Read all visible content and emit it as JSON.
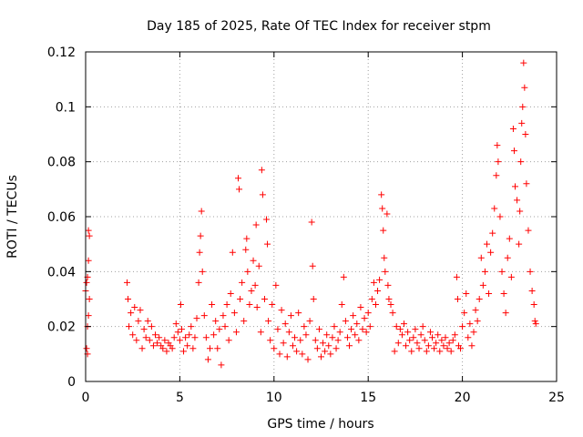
{
  "chart_data": {
    "type": "scatter",
    "title": "Day 185 of 2025, Rate Of TEC Index for receiver stpm",
    "xlabel": "GPS time / hours",
    "ylabel": "ROTI / TECUs",
    "xlim": [
      0,
      25
    ],
    "ylim": [
      0,
      0.12
    ],
    "xticks": [
      0,
      5,
      10,
      15,
      20,
      25
    ],
    "xtick_labels": [
      "0",
      "5",
      "10",
      "15",
      "20",
      "25"
    ],
    "yticks": [
      0,
      0.02,
      0.04,
      0.06,
      0.08,
      0.1,
      0.12
    ],
    "ytick_labels": [
      "0",
      "0.02",
      "0.04",
      "0.06",
      "0.08",
      "0.1",
      "0.12"
    ],
    "grid": true,
    "marker": "+",
    "series": [
      {
        "name": "ROTI",
        "color": "#ff0000",
        "points": [
          [
            0.0,
            0.033
          ],
          [
            0.05,
            0.036
          ],
          [
            0.05,
            0.012
          ],
          [
            0.1,
            0.038
          ],
          [
            0.1,
            0.02
          ],
          [
            0.1,
            0.01
          ],
          [
            0.15,
            0.055
          ],
          [
            0.15,
            0.044
          ],
          [
            0.2,
            0.053
          ],
          [
            0.2,
            0.03
          ],
          [
            0.15,
            0.024
          ],
          [
            2.2,
            0.036
          ],
          [
            2.25,
            0.03
          ],
          [
            2.3,
            0.02
          ],
          [
            2.4,
            0.025
          ],
          [
            2.5,
            0.017
          ],
          [
            2.6,
            0.027
          ],
          [
            2.7,
            0.015
          ],
          [
            2.8,
            0.022
          ],
          [
            2.9,
            0.026
          ],
          [
            3.0,
            0.012
          ],
          [
            3.1,
            0.019
          ],
          [
            3.2,
            0.016
          ],
          [
            3.3,
            0.022
          ],
          [
            3.4,
            0.015
          ],
          [
            3.5,
            0.02
          ],
          [
            3.6,
            0.013
          ],
          [
            3.7,
            0.017
          ],
          [
            3.8,
            0.014
          ],
          [
            3.9,
            0.016
          ],
          [
            4.0,
            0.013
          ],
          [
            4.1,
            0.012
          ],
          [
            4.2,
            0.015
          ],
          [
            4.3,
            0.011
          ],
          [
            4.4,
            0.014
          ],
          [
            4.5,
            0.013
          ],
          [
            4.6,
            0.012
          ],
          [
            4.7,
            0.016
          ],
          [
            4.8,
            0.021
          ],
          [
            4.9,
            0.018
          ],
          [
            5.0,
            0.015
          ],
          [
            5.05,
            0.028
          ],
          [
            5.1,
            0.019
          ],
          [
            5.2,
            0.011
          ],
          [
            5.3,
            0.016
          ],
          [
            5.4,
            0.013
          ],
          [
            5.5,
            0.017
          ],
          [
            5.6,
            0.02
          ],
          [
            5.7,
            0.012
          ],
          [
            5.8,
            0.016
          ],
          [
            5.9,
            0.023
          ],
          [
            6.0,
            0.036
          ],
          [
            6.05,
            0.047
          ],
          [
            6.1,
            0.053
          ],
          [
            6.15,
            0.062
          ],
          [
            6.2,
            0.04
          ],
          [
            6.3,
            0.024
          ],
          [
            6.4,
            0.016
          ],
          [
            6.5,
            0.008
          ],
          [
            6.6,
            0.012
          ],
          [
            6.7,
            0.028
          ],
          [
            6.8,
            0.017
          ],
          [
            6.9,
            0.022
          ],
          [
            7.0,
            0.012
          ],
          [
            7.1,
            0.019
          ],
          [
            7.2,
            0.006
          ],
          [
            7.3,
            0.024
          ],
          [
            7.4,
            0.02
          ],
          [
            7.5,
            0.028
          ],
          [
            7.6,
            0.015
          ],
          [
            7.7,
            0.032
          ],
          [
            7.8,
            0.047
          ],
          [
            7.9,
            0.025
          ],
          [
            8.0,
            0.018
          ],
          [
            8.1,
            0.074
          ],
          [
            8.15,
            0.07
          ],
          [
            8.2,
            0.03
          ],
          [
            8.3,
            0.036
          ],
          [
            8.4,
            0.022
          ],
          [
            8.5,
            0.048
          ],
          [
            8.55,
            0.052
          ],
          [
            8.6,
            0.04
          ],
          [
            8.7,
            0.028
          ],
          [
            8.8,
            0.033
          ],
          [
            8.9,
            0.044
          ],
          [
            9.0,
            0.035
          ],
          [
            9.05,
            0.057
          ],
          [
            9.1,
            0.027
          ],
          [
            9.2,
            0.042
          ],
          [
            9.3,
            0.018
          ],
          [
            9.35,
            0.077
          ],
          [
            9.4,
            0.068
          ],
          [
            9.5,
            0.03
          ],
          [
            9.6,
            0.059
          ],
          [
            9.65,
            0.05
          ],
          [
            9.7,
            0.022
          ],
          [
            9.8,
            0.015
          ],
          [
            9.9,
            0.028
          ],
          [
            10.0,
            0.012
          ],
          [
            10.1,
            0.035
          ],
          [
            10.2,
            0.019
          ],
          [
            10.3,
            0.01
          ],
          [
            10.4,
            0.026
          ],
          [
            10.5,
            0.014
          ],
          [
            10.6,
            0.021
          ],
          [
            10.7,
            0.009
          ],
          [
            10.8,
            0.018
          ],
          [
            10.9,
            0.024
          ],
          [
            11.0,
            0.013
          ],
          [
            11.1,
            0.016
          ],
          [
            11.2,
            0.011
          ],
          [
            11.3,
            0.025
          ],
          [
            11.4,
            0.015
          ],
          [
            11.5,
            0.01
          ],
          [
            11.6,
            0.02
          ],
          [
            11.7,
            0.017
          ],
          [
            11.8,
            0.008
          ],
          [
            11.9,
            0.022
          ],
          [
            12.0,
            0.058
          ],
          [
            12.05,
            0.042
          ],
          [
            12.1,
            0.03
          ],
          [
            12.2,
            0.015
          ],
          [
            12.3,
            0.012
          ],
          [
            12.4,
            0.019
          ],
          [
            12.5,
            0.009
          ],
          [
            12.6,
            0.014
          ],
          [
            12.7,
            0.011
          ],
          [
            12.8,
            0.017
          ],
          [
            12.9,
            0.013
          ],
          [
            13.0,
            0.01
          ],
          [
            13.1,
            0.016
          ],
          [
            13.2,
            0.02
          ],
          [
            13.3,
            0.012
          ],
          [
            13.4,
            0.015
          ],
          [
            13.5,
            0.018
          ],
          [
            13.6,
            0.028
          ],
          [
            13.7,
            0.038
          ],
          [
            13.8,
            0.022
          ],
          [
            13.9,
            0.016
          ],
          [
            14.0,
            0.013
          ],
          [
            14.1,
            0.019
          ],
          [
            14.2,
            0.024
          ],
          [
            14.3,
            0.017
          ],
          [
            14.4,
            0.021
          ],
          [
            14.5,
            0.015
          ],
          [
            14.6,
            0.027
          ],
          [
            14.7,
            0.019
          ],
          [
            14.8,
            0.023
          ],
          [
            14.9,
            0.018
          ],
          [
            15.0,
            0.025
          ],
          [
            15.1,
            0.02
          ],
          [
            15.2,
            0.03
          ],
          [
            15.3,
            0.036
          ],
          [
            15.4,
            0.028
          ],
          [
            15.5,
            0.033
          ],
          [
            15.6,
            0.037
          ],
          [
            15.7,
            0.068
          ],
          [
            15.75,
            0.063
          ],
          [
            15.8,
            0.055
          ],
          [
            15.85,
            0.045
          ],
          [
            15.9,
            0.04
          ],
          [
            16.0,
            0.061
          ],
          [
            16.05,
            0.035
          ],
          [
            16.1,
            0.03
          ],
          [
            16.2,
            0.028
          ],
          [
            16.3,
            0.025
          ],
          [
            16.4,
            0.011
          ],
          [
            16.5,
            0.02
          ],
          [
            16.6,
            0.014
          ],
          [
            16.7,
            0.019
          ],
          [
            16.8,
            0.017
          ],
          [
            16.9,
            0.021
          ],
          [
            17.0,
            0.013
          ],
          [
            17.1,
            0.018
          ],
          [
            17.2,
            0.015
          ],
          [
            17.3,
            0.011
          ],
          [
            17.4,
            0.016
          ],
          [
            17.5,
            0.019
          ],
          [
            17.6,
            0.014
          ],
          [
            17.7,
            0.012
          ],
          [
            17.8,
            0.017
          ],
          [
            17.9,
            0.02
          ],
          [
            18.0,
            0.015
          ],
          [
            18.1,
            0.011
          ],
          [
            18.2,
            0.013
          ],
          [
            18.3,
            0.018
          ],
          [
            18.4,
            0.016
          ],
          [
            18.5,
            0.012
          ],
          [
            18.6,
            0.014
          ],
          [
            18.7,
            0.017
          ],
          [
            18.8,
            0.011
          ],
          [
            18.9,
            0.015
          ],
          [
            19.0,
            0.013
          ],
          [
            19.1,
            0.016
          ],
          [
            19.2,
            0.012
          ],
          [
            19.3,
            0.014
          ],
          [
            19.4,
            0.011
          ],
          [
            19.5,
            0.015
          ],
          [
            19.6,
            0.017
          ],
          [
            19.7,
            0.038
          ],
          [
            19.75,
            0.03
          ],
          [
            19.8,
            0.013
          ],
          [
            19.9,
            0.012
          ],
          [
            20.0,
            0.02
          ],
          [
            20.1,
            0.025
          ],
          [
            20.2,
            0.032
          ],
          [
            20.3,
            0.016
          ],
          [
            20.4,
            0.021
          ],
          [
            20.5,
            0.013
          ],
          [
            20.6,
            0.018
          ],
          [
            20.7,
            0.026
          ],
          [
            20.8,
            0.022
          ],
          [
            20.9,
            0.03
          ],
          [
            21.0,
            0.045
          ],
          [
            21.1,
            0.035
          ],
          [
            21.2,
            0.04
          ],
          [
            21.3,
            0.05
          ],
          [
            21.4,
            0.032
          ],
          [
            21.5,
            0.047
          ],
          [
            21.6,
            0.054
          ],
          [
            21.7,
            0.063
          ],
          [
            21.8,
            0.075
          ],
          [
            21.85,
            0.086
          ],
          [
            21.9,
            0.08
          ],
          [
            22.0,
            0.06
          ],
          [
            22.1,
            0.04
          ],
          [
            22.2,
            0.032
          ],
          [
            22.3,
            0.025
          ],
          [
            22.4,
            0.045
          ],
          [
            22.5,
            0.052
          ],
          [
            22.6,
            0.038
          ],
          [
            22.7,
            0.092
          ],
          [
            22.75,
            0.084
          ],
          [
            22.8,
            0.071
          ],
          [
            22.9,
            0.066
          ],
          [
            23.0,
            0.05
          ],
          [
            23.05,
            0.062
          ],
          [
            23.1,
            0.08
          ],
          [
            23.15,
            0.094
          ],
          [
            23.2,
            0.1
          ],
          [
            23.25,
            0.116
          ],
          [
            23.3,
            0.107
          ],
          [
            23.35,
            0.09
          ],
          [
            23.4,
            0.072
          ],
          [
            23.5,
            0.055
          ],
          [
            23.6,
            0.04
          ],
          [
            23.7,
            0.033
          ],
          [
            23.8,
            0.028
          ],
          [
            23.85,
            0.022
          ],
          [
            23.9,
            0.021
          ]
        ]
      }
    ]
  }
}
